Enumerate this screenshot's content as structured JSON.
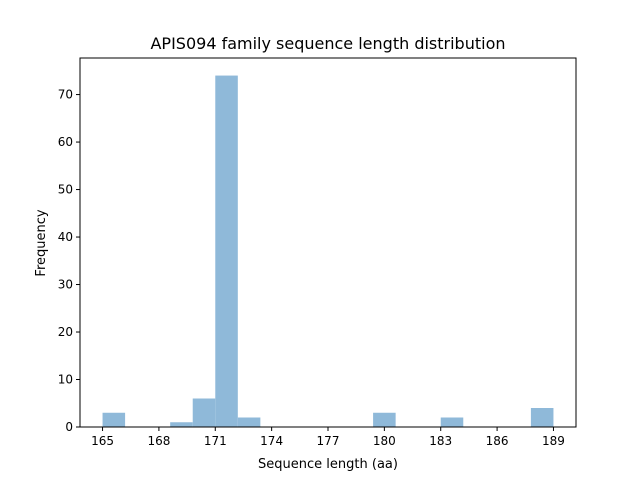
{
  "chart_data": {
    "type": "bar",
    "title": "APIS094 family sequence length distribution",
    "xlabel": "Sequence length (aa)",
    "ylabel": "Frequency",
    "bin_edges_start": 165,
    "bin_width": 1.2,
    "values": [
      3,
      0,
      0,
      1,
      6,
      74,
      2,
      0,
      0,
      0,
      0,
      0,
      3,
      0,
      0,
      2,
      0,
      0,
      0,
      4
    ],
    "xlim": [
      163.8,
      190.2
    ],
    "ylim": [
      0,
      77.7
    ],
    "xticks": [
      "165",
      "168",
      "171",
      "174",
      "177",
      "180",
      "183",
      "186",
      "189"
    ],
    "yticks": [
      "0",
      "10",
      "20",
      "30",
      "40",
      "50",
      "60",
      "70"
    ],
    "bar_color": "#8fb9d9",
    "grid": false
  }
}
